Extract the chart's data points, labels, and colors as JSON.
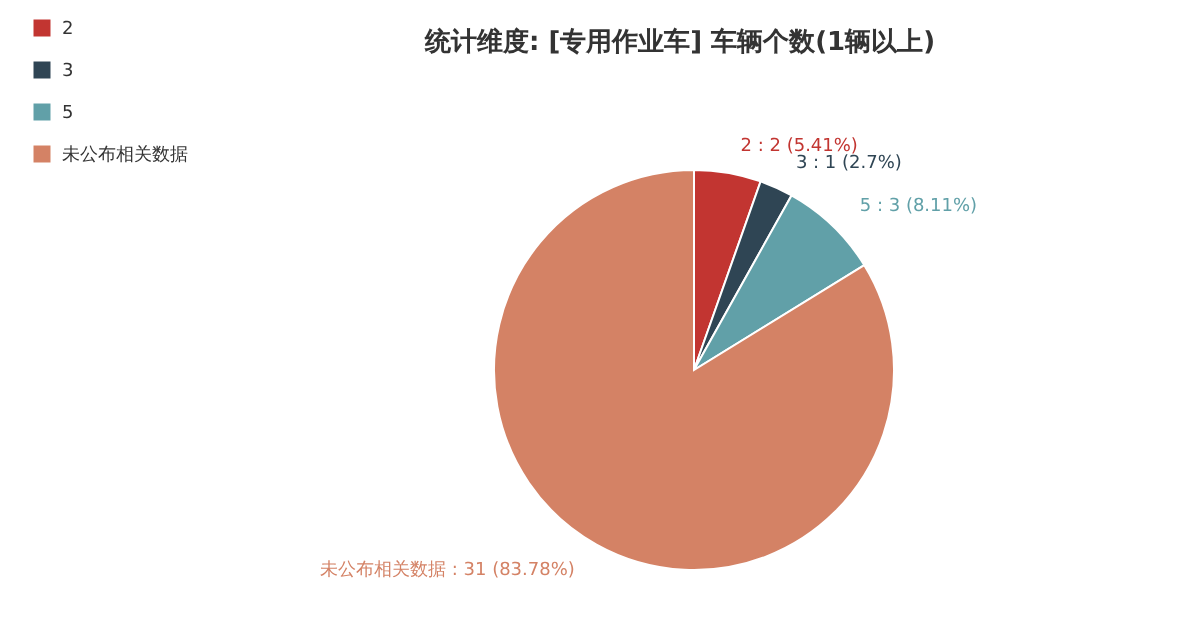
{
  "chart_data": {
    "type": "pie",
    "title": "统计维度: [专用作业车] 车辆个数(1辆以上)",
    "categories": [
      "2",
      "3",
      "5",
      "未公布相关数据"
    ],
    "values": [
      2,
      1,
      3,
      31
    ],
    "colors": [
      "#c23531",
      "#2f4554",
      "#61a0a8",
      "#d48265"
    ],
    "value_labels": [
      "2 : 2 (5.41%)",
      "3 : 1 (2.7%)",
      "5 : 3 (8.11%)",
      "未公布相关数据 : 31 (83.78%)"
    ],
    "legend": "top left"
  }
}
